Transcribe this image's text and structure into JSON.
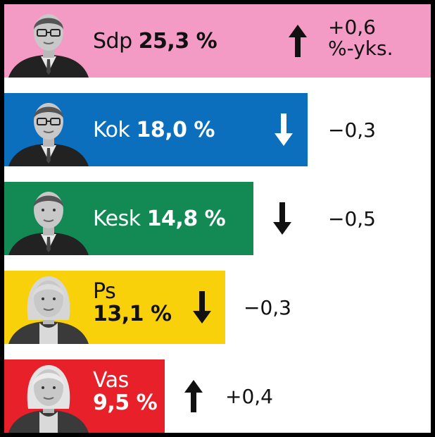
{
  "chart_data": {
    "type": "bar",
    "orientation": "horizontal",
    "value_unit": "%",
    "change_unit": "%-yks.",
    "bars": [
      {
        "party": "Sdp",
        "value": 25.3,
        "value_label": "25,3 %",
        "change": 0.6,
        "change_label": "+0,6",
        "change_unit_label": "%-yks.",
        "direction": "up",
        "color": "#f39bc4",
        "label_color": "#111111",
        "stacked_label": false
      },
      {
        "party": "Kok",
        "value": 18.0,
        "value_label": "18,0 %",
        "change": -0.3,
        "change_label": "−0,3",
        "change_unit_label": "",
        "direction": "down",
        "color": "#0b6fbe",
        "label_color": "#ffffff",
        "stacked_label": false
      },
      {
        "party": "Kesk",
        "value": 14.8,
        "value_label": "14,8 %",
        "change": -0.5,
        "change_label": "−0,5",
        "change_unit_label": "",
        "direction": "down",
        "color": "#138a54",
        "label_color": "#ffffff",
        "stacked_label": false
      },
      {
        "party": "Ps",
        "value": 13.1,
        "value_label": "13,1 %",
        "change": -0.3,
        "change_label": "−0,3",
        "change_unit_label": "",
        "direction": "down",
        "color": "#f9d10a",
        "label_color": "#111111",
        "stacked_label": true
      },
      {
        "party": "Vas",
        "value": 9.5,
        "value_label": "9,5 %",
        "change": 0.4,
        "change_label": "+0,4",
        "change_unit_label": "",
        "direction": "up",
        "color": "#e8202a",
        "label_color": "#ffffff",
        "stacked_label": true
      }
    ]
  }
}
